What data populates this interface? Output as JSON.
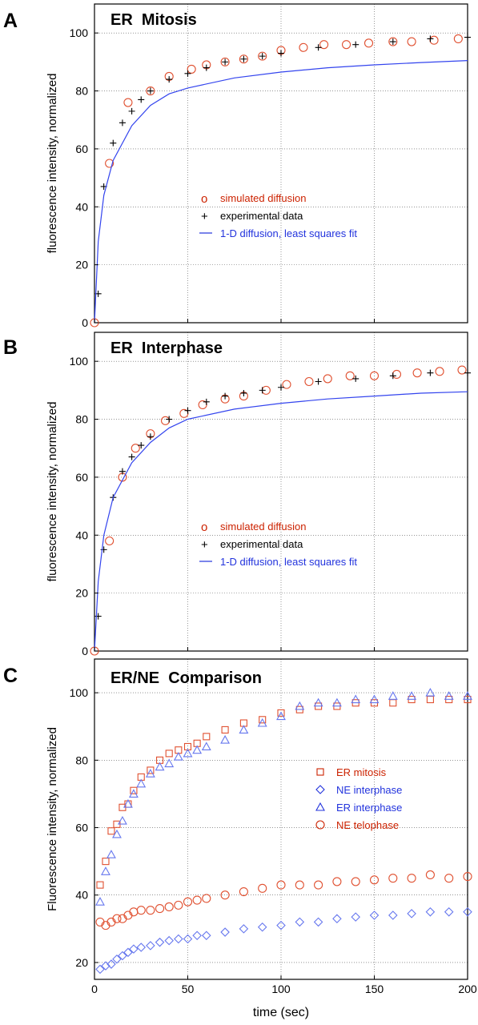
{
  "x_axis_label": "time (sec)",
  "chart_data": [
    {
      "panel_letter": "A",
      "title": "ER  Mitosis",
      "type": "scatter",
      "ylabel": "fluorescence intensity, normalized",
      "xlabel": "",
      "xlim": [
        0,
        200
      ],
      "ylim": [
        0,
        110
      ],
      "x_ticks": [
        "0",
        "50",
        "100",
        "150",
        "200"
      ],
      "y_ticks": [
        "0",
        "20",
        "40",
        "60",
        "80",
        "100"
      ],
      "grid": true,
      "legend_position": "center-right",
      "legend": [
        {
          "symbol": "o",
          "label": "simulated  diffusion",
          "color": "#cc2200"
        },
        {
          "symbol": "+",
          "label": "experimental  data",
          "color": "#000000"
        },
        {
          "symbol": "line",
          "label": "1-D  diffusion, least squares fit",
          "color": "#2233dd"
        }
      ],
      "series": [
        {
          "name": "simulated  diffusion",
          "marker": "circle",
          "color": "#e05030",
          "x": [
            0,
            8,
            18,
            30,
            40,
            52,
            60,
            70,
            80,
            90,
            100,
            112,
            123,
            135,
            147,
            160,
            170,
            182,
            195
          ],
          "y": [
            0,
            55,
            76,
            80,
            85,
            87.5,
            89,
            90,
            91,
            92,
            94,
            95,
            96,
            96,
            96.5,
            97,
            97,
            97.5,
            98
          ]
        },
        {
          "name": "experimental  data",
          "marker": "plus",
          "color": "#000000",
          "x": [
            2,
            5,
            10,
            15,
            20,
            25,
            30,
            40,
            50,
            60,
            70,
            80,
            90,
            100,
            120,
            140,
            160,
            180,
            200
          ],
          "y": [
            10,
            47,
            62,
            69,
            73,
            77,
            80,
            84,
            86,
            88,
            90,
            91,
            92,
            93,
            95,
            96,
            97,
            98,
            98.5
          ]
        },
        {
          "name": "1-D  diffusion, least squares fit",
          "marker": "line",
          "color": "#3344ee",
          "x": [
            0,
            2,
            5,
            10,
            20,
            30,
            40,
            50,
            75,
            100,
            125,
            150,
            175,
            200
          ],
          "y": [
            0,
            28,
            44,
            56,
            68,
            75,
            79,
            81,
            84.5,
            86.5,
            88,
            89,
            89.8,
            90.5
          ]
        }
      ]
    },
    {
      "panel_letter": "B",
      "title": "ER  Interphase",
      "type": "scatter",
      "ylabel": "fluorescence intensity, normalized",
      "xlabel": "",
      "xlim": [
        0,
        200
      ],
      "ylim": [
        0,
        110
      ],
      "x_ticks": [
        "0",
        "50",
        "100",
        "150",
        "200"
      ],
      "y_ticks": [
        "0",
        "20",
        "40",
        "60",
        "80",
        "100"
      ],
      "grid": true,
      "legend_position": "center-right",
      "legend": [
        {
          "symbol": "o",
          "label": "simulated  diffusion",
          "color": "#cc2200"
        },
        {
          "symbol": "+",
          "label": "experimental  data",
          "color": "#000000"
        },
        {
          "symbol": "line",
          "label": "1-D  diffusion, least squares fit",
          "color": "#2233dd"
        }
      ],
      "series": [
        {
          "name": "simulated  diffusion",
          "marker": "circle",
          "color": "#e05030",
          "x": [
            0,
            8,
            15,
            22,
            30,
            38,
            48,
            58,
            70,
            80,
            92,
            103,
            115,
            125,
            137,
            150,
            162,
            173,
            185,
            197
          ],
          "y": [
            0,
            38,
            60,
            70,
            75,
            79.5,
            82,
            85,
            87,
            88,
            90,
            92,
            93,
            94,
            95,
            95,
            95.5,
            96,
            96.5,
            97
          ]
        },
        {
          "name": "experimental  data",
          "marker": "plus",
          "color": "#000000",
          "x": [
            2,
            5,
            10,
            15,
            20,
            25,
            30,
            40,
            50,
            60,
            70,
            80,
            90,
            100,
            120,
            140,
            160,
            180,
            200
          ],
          "y": [
            12,
            35,
            53,
            62,
            67,
            71,
            74,
            80,
            83,
            86,
            88,
            89,
            90,
            91,
            93,
            94,
            95,
            96,
            96
          ]
        },
        {
          "name": "1-D  diffusion, least squares fit",
          "marker": "line",
          "color": "#3344ee",
          "x": [
            0,
            2,
            5,
            10,
            20,
            30,
            40,
            50,
            75,
            100,
            125,
            150,
            175,
            200
          ],
          "y": [
            0,
            24,
            40,
            53,
            65,
            72,
            77,
            80,
            83.5,
            85.5,
            87,
            88,
            89,
            89.5
          ]
        }
      ]
    },
    {
      "panel_letter": "C",
      "title": "ER/NE  Comparison",
      "type": "scatter",
      "ylabel": "Fluorescence intensity, normalized",
      "xlabel": "time (sec)",
      "xlim": [
        0,
        200
      ],
      "ylim": [
        15,
        110
      ],
      "x_ticks": [
        "0",
        "50",
        "100",
        "150",
        "200"
      ],
      "y_ticks": [
        "20",
        "40",
        "60",
        "80",
        "100"
      ],
      "grid": true,
      "legend_position": "center-right",
      "legend": [
        {
          "symbol": "square",
          "label": "ER  mitosis",
          "color": "#cc2200"
        },
        {
          "symbol": "diamond",
          "label": "NE  interphase",
          "color": "#2233dd"
        },
        {
          "symbol": "triangle",
          "label": "ER  interphase",
          "color": "#2233dd"
        },
        {
          "symbol": "circle",
          "label": "NE  telophase",
          "color": "#cc2200"
        }
      ],
      "series": [
        {
          "name": "ER  mitosis",
          "marker": "square",
          "color": "#e05030",
          "x": [
            3,
            6,
            9,
            12,
            15,
            18,
            21,
            25,
            30,
            35,
            40,
            45,
            50,
            55,
            60,
            70,
            80,
            90,
            100,
            110,
            120,
            130,
            140,
            150,
            160,
            170,
            180,
            190,
            200
          ],
          "y": [
            43,
            50,
            59,
            61,
            66,
            67,
            71,
            75,
            77,
            80,
            82,
            83,
            84,
            85,
            87,
            89,
            91,
            92,
            94,
            95,
            96,
            96,
            97,
            97,
            97,
            98,
            98,
            98,
            98
          ]
        },
        {
          "name": "NE  interphase",
          "marker": "diamond",
          "color": "#6677ee",
          "x": [
            3,
            6,
            9,
            12,
            15,
            18,
            21,
            25,
            30,
            35,
            40,
            45,
            50,
            55,
            60,
            70,
            80,
            90,
            100,
            110,
            120,
            130,
            140,
            150,
            160,
            170,
            180,
            190,
            200
          ],
          "y": [
            18,
            19,
            19.5,
            21,
            22,
            23,
            24,
            24.5,
            25,
            26,
            26.5,
            27,
            27,
            28,
            28,
            29,
            30,
            30.5,
            31,
            32,
            32,
            33,
            33.5,
            34,
            34,
            34.5,
            35,
            35,
            35
          ]
        },
        {
          "name": "ER  interphase",
          "marker": "triangle",
          "color": "#6677ee",
          "x": [
            3,
            6,
            9,
            12,
            15,
            18,
            21,
            25,
            30,
            35,
            40,
            45,
            50,
            55,
            60,
            70,
            80,
            90,
            100,
            110,
            120,
            130,
            140,
            150,
            160,
            170,
            180,
            190,
            200
          ],
          "y": [
            38,
            47,
            52,
            58,
            62,
            67,
            70,
            73,
            76,
            78,
            79,
            81,
            82,
            83,
            84,
            86,
            89,
            91,
            93,
            96,
            97,
            97,
            98,
            98,
            99,
            99,
            100,
            99,
            99
          ]
        },
        {
          "name": "NE  telophase",
          "marker": "circle",
          "color": "#e05030",
          "x": [
            3,
            6,
            9,
            12,
            15,
            18,
            21,
            25,
            30,
            35,
            40,
            45,
            50,
            55,
            60,
            70,
            80,
            90,
            100,
            110,
            120,
            130,
            140,
            150,
            160,
            170,
            180,
            190,
            200
          ],
          "y": [
            32,
            31,
            32,
            33,
            33,
            34,
            35,
            35.5,
            35.5,
            36,
            36.5,
            37,
            38,
            38.5,
            39,
            40,
            41,
            42,
            43,
            43,
            43,
            44,
            44,
            44.5,
            45,
            45,
            46,
            45,
            45.5
          ]
        }
      ]
    }
  ]
}
